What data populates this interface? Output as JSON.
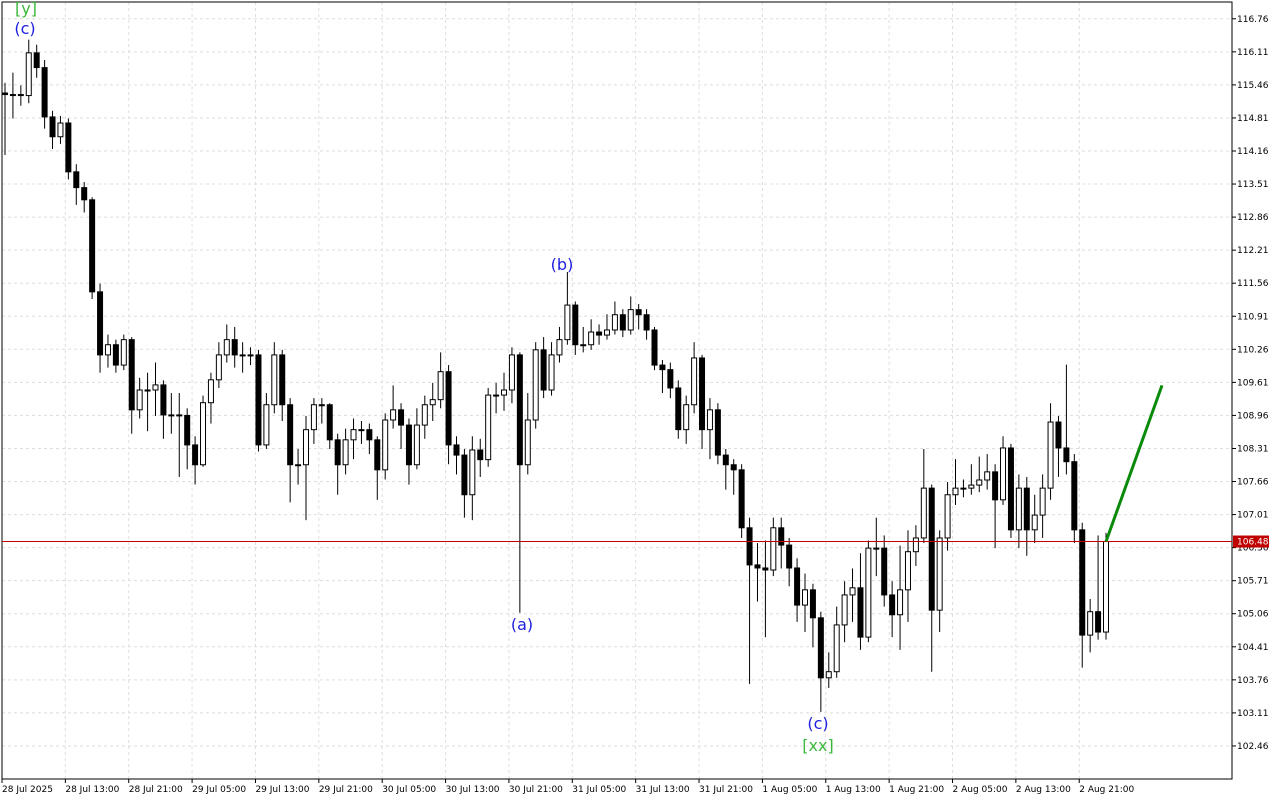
{
  "chart_data": {
    "type": "candlestick",
    "categories": [
      "28 Jul 2025",
      null,
      null,
      null,
      null,
      null,
      null,
      null,
      "28 Jul 13:00",
      null,
      null,
      null,
      null,
      null,
      null,
      null,
      "28 Jul 21:00",
      null,
      null,
      null,
      null,
      null,
      null,
      null,
      "29 Jul 05:00",
      null,
      null,
      null,
      null,
      null,
      null,
      null,
      "29 Jul 13:00",
      null,
      null,
      null,
      null,
      null,
      null,
      null,
      "29 Jul 21:00",
      null,
      null,
      null,
      null,
      null,
      null,
      null,
      "30 Jul 05:00",
      null,
      null,
      null,
      null,
      null,
      null,
      null,
      "30 Jul 13:00",
      null,
      null,
      null,
      null,
      null,
      null,
      null,
      "30 Jul 21:00",
      null,
      null,
      null,
      null,
      null,
      null,
      null,
      "31 Jul 05:00",
      null,
      null,
      null,
      null,
      null,
      null,
      null,
      "31 Jul 13:00",
      null,
      null,
      null,
      null,
      null,
      null,
      null,
      "31 Jul 21:00",
      null,
      null,
      null,
      null,
      null,
      null,
      null,
      "1 Aug 05:00",
      null,
      null,
      null,
      null,
      null,
      null,
      null,
      "1 Aug 13:00",
      null,
      null,
      null,
      null,
      null,
      null,
      null,
      "1 Aug 21:00",
      null,
      null,
      null,
      null,
      null,
      null,
      null,
      "2 Aug 05:00",
      null,
      null,
      null,
      null,
      null,
      null,
      null,
      "2 Aug 13:00",
      null,
      null,
      null,
      null,
      null,
      null,
      null,
      "2 Aug 21:00",
      null,
      null,
      null
    ],
    "open": [
      115.3,
      115.27,
      115.27,
      115.25,
      116.09,
      115.8,
      114.83,
      114.44,
      114.71,
      113.75,
      113.44,
      113.2,
      111.39,
      110.15,
      110.35,
      109.95,
      110.45,
      109.07,
      109.46,
      109.46,
      109.56,
      108.97,
      108.97,
      108.96,
      108.38,
      107.99,
      109.21,
      109.66,
      110.15,
      110.45,
      110.15,
      110.15,
      110.15,
      108.38,
      109.17,
      110.15,
      109.17,
      107.99,
      107.99,
      108.68,
      109.17,
      109.17,
      108.48,
      107.99,
      108.48,
      108.68,
      108.68,
      108.48,
      107.89,
      108.87,
      109.07,
      108.77,
      107.99,
      108.77,
      109.17,
      109.27,
      109.82,
      108.38,
      108.18,
      107.4,
      108.28,
      108.09,
      109.36,
      109.36,
      109.46,
      110.15,
      107.99,
      108.87,
      110.25,
      109.46,
      110.15,
      110.45,
      111.13,
      110.35,
      110.35,
      110.6,
      110.54,
      110.64,
      110.94,
      110.64,
      111.04,
      110.94,
      110.64,
      109.95,
      109.86,
      109.5,
      108.68,
      109.17,
      110.09,
      108.68,
      109.07,
      108.18,
      107.99,
      107.89,
      106.75,
      106.02,
      105.96,
      105.92,
      106.75,
      106.41,
      105.96,
      105.23,
      105.53,
      104.98,
      103.8,
      103.92,
      104.84,
      105.43,
      105.57,
      104.6,
      106.35,
      106.35,
      105.43,
      105.04,
      105.53,
      106.28,
      106.55,
      107.53,
      105.13,
      106.55,
      107.4,
      107.53,
      107.53,
      107.59,
      107.69,
      107.85,
      107.3,
      108.32,
      106.71,
      107.53,
      106.71,
      107.0,
      107.53,
      108.83,
      108.32,
      108.05,
      106.71,
      104.64,
      105.1,
      104.7
    ],
    "high": [
      115.5,
      115.7,
      115.45,
      116.35,
      116.25,
      115.95,
      114.95,
      114.85,
      114.8,
      113.9,
      113.55,
      113.25,
      111.55,
      110.55,
      110.45,
      110.55,
      110.5,
      109.7,
      109.8,
      110.0,
      109.65,
      109.4,
      109.4,
      109.1,
      108.55,
      109.35,
      109.8,
      110.4,
      110.75,
      110.7,
      110.4,
      110.3,
      110.25,
      109.4,
      110.4,
      110.25,
      109.3,
      108.3,
      108.95,
      109.3,
      109.3,
      109.2,
      108.6,
      108.7,
      108.9,
      108.85,
      108.8,
      108.55,
      109.0,
      109.55,
      109.2,
      108.9,
      109.1,
      109.35,
      109.6,
      110.2,
      109.95,
      108.55,
      108.3,
      108.55,
      108.5,
      109.5,
      109.6,
      109.8,
      110.3,
      110.2,
      109.4,
      110.4,
      110.5,
      110.4,
      110.7,
      111.78,
      111.2,
      110.7,
      110.85,
      110.75,
      110.95,
      111.2,
      111.05,
      111.3,
      111.15,
      111.05,
      110.7,
      110.05,
      110.0,
      109.65,
      109.35,
      110.4,
      110.15,
      109.3,
      109.2,
      108.3,
      108.1,
      108.0,
      106.95,
      106.45,
      106.5,
      106.95,
      106.95,
      106.55,
      106.15,
      105.85,
      105.65,
      105.1,
      104.3,
      105.2,
      105.7,
      105.95,
      106.25,
      106.5,
      106.95,
      106.6,
      105.7,
      106.4,
      106.7,
      106.8,
      108.3,
      107.6,
      106.7,
      107.65,
      108.1,
      107.7,
      108.0,
      108.15,
      108.2,
      108.0,
      108.55,
      108.4,
      107.8,
      107.75,
      107.4,
      107.8,
      109.2,
      108.95,
      109.96,
      108.2,
      106.85,
      105.35,
      106.6,
      106.65
    ],
    "low": [
      114.08,
      114.8,
      115.05,
      115.1,
      115.6,
      114.6,
      114.2,
      114.3,
      113.6,
      113.1,
      112.95,
      111.25,
      109.8,
      109.9,
      109.8,
      109.85,
      108.6,
      108.9,
      108.65,
      108.95,
      108.5,
      108.6,
      107.75,
      107.9,
      107.6,
      107.95,
      108.8,
      109.5,
      110.0,
      109.9,
      109.8,
      109.95,
      108.25,
      108.3,
      109.0,
      108.85,
      107.25,
      107.6,
      106.9,
      108.4,
      108.8,
      108.3,
      107.4,
      107.8,
      108.1,
      108.4,
      108.2,
      107.3,
      107.7,
      108.7,
      108.3,
      107.6,
      107.9,
      108.5,
      108.85,
      109.1,
      108.0,
      107.8,
      106.95,
      106.9,
      107.75,
      107.95,
      109.0,
      109.05,
      109.2,
      105.08,
      107.8,
      108.7,
      109.3,
      109.35,
      110.0,
      110.35,
      110.15,
      110.2,
      110.25,
      110.35,
      110.45,
      110.55,
      110.5,
      110.55,
      110.65,
      110.45,
      109.85,
      109.4,
      109.3,
      108.5,
      108.4,
      109.0,
      108.3,
      108.1,
      108.0,
      107.5,
      107.4,
      106.55,
      103.68,
      105.3,
      104.6,
      105.8,
      105.95,
      105.6,
      104.9,
      104.7,
      104.4,
      103.13,
      103.6,
      103.8,
      104.5,
      104.9,
      104.35,
      104.5,
      105.8,
      105.2,
      104.6,
      104.35,
      104.9,
      106.0,
      106.45,
      103.92,
      104.7,
      106.3,
      107.2,
      107.35,
      107.4,
      107.45,
      107.5,
      106.35,
      107.2,
      106.55,
      106.35,
      106.2,
      106.45,
      106.55,
      107.3,
      107.75,
      107.8,
      106.45,
      104.0,
      104.3,
      104.55,
      104.55
    ],
    "close": [
      115.27,
      115.27,
      115.25,
      116.09,
      115.8,
      114.83,
      114.44,
      114.71,
      113.75,
      113.44,
      113.2,
      111.39,
      110.15,
      110.35,
      109.95,
      110.45,
      109.07,
      109.46,
      109.46,
      109.56,
      108.97,
      108.97,
      108.96,
      108.38,
      107.99,
      109.21,
      109.66,
      110.15,
      110.45,
      110.15,
      110.15,
      110.15,
      108.38,
      109.17,
      110.15,
      109.17,
      107.99,
      107.99,
      108.68,
      109.17,
      109.17,
      108.48,
      107.99,
      108.48,
      108.68,
      108.68,
      108.48,
      107.89,
      108.87,
      109.07,
      108.77,
      107.99,
      108.77,
      109.17,
      109.27,
      109.82,
      108.38,
      108.18,
      107.4,
      108.28,
      108.09,
      109.36,
      109.36,
      109.46,
      110.15,
      107.99,
      108.87,
      110.25,
      109.46,
      110.15,
      110.45,
      111.13,
      110.35,
      110.35,
      110.6,
      110.54,
      110.64,
      110.94,
      110.64,
      111.04,
      110.94,
      110.64,
      109.95,
      109.86,
      109.5,
      108.68,
      109.17,
      110.09,
      108.68,
      109.07,
      108.18,
      107.99,
      107.89,
      106.75,
      106.02,
      105.96,
      105.92,
      106.75,
      106.41,
      105.96,
      105.23,
      105.53,
      104.98,
      103.8,
      103.92,
      104.84,
      105.43,
      105.57,
      104.6,
      106.35,
      106.35,
      105.43,
      105.04,
      105.53,
      106.28,
      106.55,
      107.53,
      105.13,
      106.55,
      107.4,
      107.53,
      107.53,
      107.59,
      107.69,
      107.85,
      107.3,
      108.32,
      106.71,
      107.53,
      106.71,
      107.0,
      107.53,
      108.83,
      108.32,
      108.05,
      106.71,
      104.64,
      105.1,
      104.7,
      106.48
    ],
    "up_color": "#ffffff",
    "down_color": "#000000",
    "ylim": [
      101.81,
      117.09
    ],
    "yticks": [
      116.76,
      116.11,
      115.46,
      114.81,
      114.16,
      113.51,
      112.86,
      112.21,
      111.56,
      110.91,
      110.26,
      109.61,
      108.96,
      108.31,
      107.66,
      107.01,
      106.36,
      105.71,
      105.06,
      104.41,
      103.76,
      103.11,
      102.46
    ],
    "grid": true,
    "last_price": 106.48,
    "last_price_color": "#c00000",
    "projection": {
      "values": [
        106.48,
        109.55
      ],
      "color": "#0a8a0a"
    },
    "annotations": [
      {
        "text": "[y]",
        "color": "#3cb83c"
      },
      {
        "text": "(c)",
        "color": "#2020e0"
      },
      {
        "text": "(b)",
        "color": "#2020e0"
      },
      {
        "text": "(a)",
        "color": "#2020e0"
      },
      {
        "text": "(c)",
        "color": "#2020e0"
      },
      {
        "text": "[xx]",
        "color": "#3cb83c"
      }
    ]
  }
}
